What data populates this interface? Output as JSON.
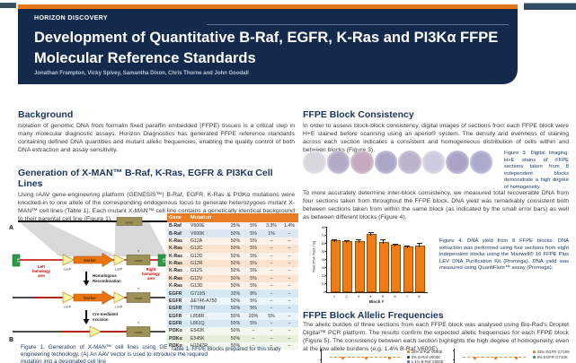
{
  "theme": {
    "navy": "#132a4d",
    "orange": "#e97612",
    "table_header_orange": "#e87d26",
    "heading_navy": "#17365d"
  },
  "header": {
    "brand": "HORIZON DISCOVERY",
    "title_line1": "Development of Quantitative B-Raf, EGFR, K-Ras and PI3Kα FFPE",
    "title_line2": "Molecular Reference Standards",
    "authors": "Jonathan Frampton, Vicky Spivey, Samantha Dixon, Chris Thorne and John Goodall"
  },
  "left": {
    "background": {
      "heading": "Background",
      "body": "Isolation of genomic DNA from formalin fixed paraffin embedded (FFPE) tissues is a critical step in many molecular diagnostic assays. Horizon Diagnostics has generated FFPE reference standards containing defined DNA quantities and mutant allelic frequencies, enabling the quality control of both DNA extraction and assay sensitivity."
    },
    "generation": {
      "heading": "Generation of X-MAN™ B-Raf, K-Ras, EGFR & PI3Kα Cell Lines",
      "body": "Using rAAV gene-engineering platform (GENESIS™) B-Raf, EGFR, K-Ras & PI3Kα mutations were knocked-in to one allele of the corresponding endogenous locus to generate heterozygous mutant X-MAN™ cell lines (Table 1). Each mutant X-MAN™ cell line contains a genetically identical background to their parental cell line (Figure 1)."
    },
    "figure1": {
      "labels": {
        "a": "A",
        "b": "B",
        "itr": "ITR",
        "left_arm": [
          "Left",
          "homology",
          "arm"
        ],
        "right_arm": [
          "Right",
          "homology",
          "arm"
        ],
        "loxp": "LoxP",
        "marker": "Marker",
        "exon": "exon",
        "star": "*",
        "step1": [
          "Homologous",
          "Recombination"
        ],
        "step2": [
          "Cre-mediated",
          "excision"
        ]
      },
      "caption": "Figure 1. Generation of X-MAN™ cell lines using GENESIS™ gene-engineering technology. (A) An AAV vector is used to introduce the required mutation into a designated cell line"
    },
    "table1": {
      "headers": [
        "Gene",
        "Mutation",
        "",
        "",
        "",
        ""
      ],
      "rows": [
        {
          "gene": "B-Raf",
          "mutation": "V600E",
          "group": "braf",
          "f": [
            "25%",
            "5%",
            "3.3%",
            "1.4%"
          ]
        },
        {
          "gene": "B-Raf",
          "mutation": "V600K",
          "group": "braf",
          "f": [
            "50%",
            "5%",
            "1%",
            "–"
          ]
        },
        {
          "gene": "K-Ras",
          "mutation": "G12A",
          "group": "kras",
          "f": [
            "50%",
            "5%",
            "–",
            "–"
          ]
        },
        {
          "gene": "K-Ras",
          "mutation": "G12C",
          "group": "kras",
          "f": [
            "50%",
            "5%",
            "–",
            "–"
          ]
        },
        {
          "gene": "K-Ras",
          "mutation": "G12D",
          "group": "kras",
          "f": [
            "50%",
            "5%",
            "–",
            "–"
          ]
        },
        {
          "gene": "K-Ras",
          "mutation": "G12R",
          "group": "kras",
          "f": [
            "50%",
            "5%",
            "–",
            "–"
          ]
        },
        {
          "gene": "K-Ras",
          "mutation": "G12S",
          "group": "kras",
          "f": [
            "50%",
            "5%",
            "–",
            "–"
          ]
        },
        {
          "gene": "K-Ras",
          "mutation": "G12V",
          "group": "kras",
          "f": [
            "50%",
            "5%",
            "–",
            "–"
          ]
        },
        {
          "gene": "K-Ras",
          "mutation": "G13D",
          "group": "kras",
          "f": [
            "50%",
            "5%",
            "–",
            "–"
          ]
        },
        {
          "gene": "EGFR",
          "mutation": "G719S",
          "group": "egfr",
          "f": [
            "33%",
            "8%",
            "–",
            "–"
          ]
        },
        {
          "gene": "EGFR",
          "mutation": "ΔE746-A750",
          "group": "egfr",
          "f": [
            "50%",
            "5%",
            "–",
            "–"
          ]
        },
        {
          "gene": "EGFR",
          "mutation": "T790M",
          "group": "egfr",
          "f": [
            "50%",
            "5%",
            "–",
            "–"
          ]
        },
        {
          "gene": "EGFR",
          "mutation": "L858R",
          "group": "egfr",
          "f": [
            "50%",
            "20%",
            "5%",
            "–"
          ]
        },
        {
          "gene": "EGFR",
          "mutation": "L861Q",
          "group": "egfr",
          "f": [
            "50%",
            "5%",
            "–",
            "–"
          ]
        },
        {
          "gene": "PI3Kα",
          "mutation": "E542K",
          "group": "pik",
          "f": [
            "50%",
            "–",
            "–",
            "–"
          ]
        },
        {
          "gene": "PI3Kα",
          "mutation": "E545K",
          "group": "pik",
          "f": [
            "50%",
            "–",
            "–",
            "–"
          ]
        },
        {
          "gene": "PI3Kα",
          "mutation": "H1047R",
          "group": "pik",
          "f": [
            "50%",
            "–",
            "–",
            "–"
          ]
        }
      ],
      "caption": "Table 1. FFPE Blocks prepared for this study"
    }
  },
  "right": {
    "consistency": {
      "heading": "FFPE Block Consistency",
      "body1": "In order to assess block-block consistency, digital images of sections from each FFPE block were H+E stained before scanning using an aperio® system. The density and evenness of staining across each section indicates a consistent and homogeneous distribution of cells within and between blocks (Figure 3).",
      "body2": "To more accurately determine inter-block consistency, we measured total recoverable DNA from four sections taken from throughout the FFPE block. DNA yield was remarkably consistent both between sections taken from within the same block (as indicated by the small error bars) as well as between different blocks (Figure 4)."
    },
    "figure3": {
      "caption": "Figure 3. Digital Imaging: H+E stains of FFPE sections taken from 8 independent blocks demonstrate a high degree of homogeneity.",
      "circles": [
        {
          "color": "#d9d6e0"
        },
        {
          "color": "#b3aac6"
        },
        {
          "color": "#c4a9bf"
        },
        {
          "color": "#a9a6c8"
        },
        {
          "color": "#bbb2cc"
        },
        {
          "color": "#cfcbdf"
        },
        {
          "color": "#aba3c6"
        },
        {
          "color": "#a9aacd"
        }
      ]
    },
    "figure4": {
      "caption": "Figure 4. DNA yield from 8 FFPE blocks: DNA extraction was performed using four sections from eight independent blocks using the Maxwell® 16 FFPE Plus LEV DNA Purification Kit (Promega). DNA yield was measured using QuantiFluor™ assay (Promega)."
    },
    "allelic": {
      "heading": "FFPE Block Allelic Frequencies",
      "body": "The allelic burden of three sections from each FFPE block was analysed using Bio-Rad's Droplet Digital™ PCR platform. The results confirm the expected allelic frequencies for each FFPE block (Figure 5). The consistency between each section highlights the high degree of homogeneity, even at the low allele burdens (e.g. 1.4% B-Raf V600E).",
      "points_per_plot": 3
    }
  },
  "chart_data": [
    {
      "id": "figure4",
      "type": "bar",
      "title": "",
      "xlabel": "Block #",
      "ylabel": "Total DNA Yield / ng",
      "categories": [
        "1",
        "2",
        "3",
        "4",
        "5",
        "6",
        "7",
        "8"
      ],
      "values": [
        62,
        61,
        61,
        70,
        60,
        57,
        54,
        56
      ],
      "errors": [
        2,
        2,
        3,
        3,
        4,
        2,
        3,
        4
      ],
      "ylim": [
        0,
        80
      ],
      "ytick_step": 10,
      "grid": false,
      "bar_color": "#f07d13"
    },
    {
      "id": "figure5-left",
      "type": "scatter",
      "note": "bottom of poster cut off; dashed constant line with one point per section visible",
      "x": [
        1,
        2,
        3
      ],
      "series": [
        {
          "name": "25% B-Raf V600E",
          "color": "#f07d13",
          "y": [
            25,
            25,
            25
          ]
        },
        {
          "name": "5% B-Raf V600E",
          "color": "#404040"
        },
        {
          "name": "1.4% B-Raf V600E",
          "color": "#4472c4"
        }
      ],
      "legend_position": "right"
    },
    {
      "id": "figure5-right",
      "type": "scatter",
      "note": "bottom of poster cut off; dashed constant line with one point per section visible",
      "x": [
        1,
        2,
        3
      ],
      "series": [
        {
          "name": "33% EGFR G719S",
          "color": "#f07d13",
          "y": [
            33,
            33,
            33
          ]
        },
        {
          "name": "8% EGFR G719S",
          "color": "#2e9b44"
        }
      ],
      "legend_position": "right"
    }
  ]
}
